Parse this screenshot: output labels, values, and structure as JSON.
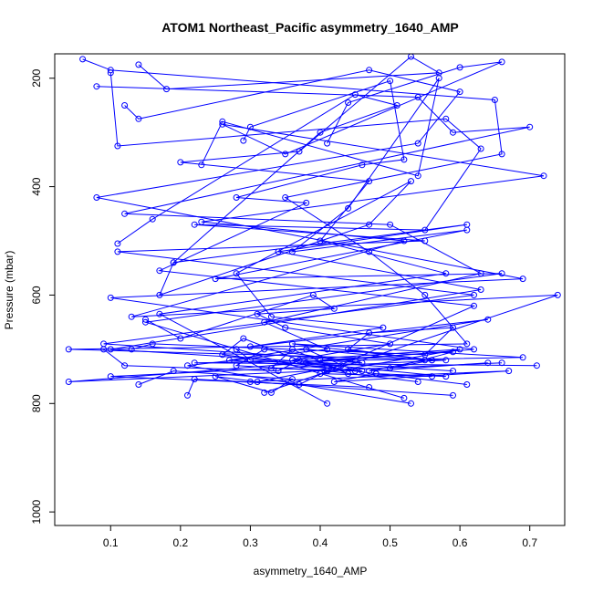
{
  "chart_data": {
    "type": "scatter",
    "title": "ATOM1 Northeast_Pacific asymmetry_1640_AMP",
    "xlabel": "asymmetry_1640_AMP",
    "ylabel": "Pressure (mbar)",
    "xlim": [
      0.02,
      0.75
    ],
    "ylim": [
      1025,
      155
    ],
    "y_reversed": true,
    "xticks": [
      0.1,
      0.2,
      0.3,
      0.4,
      0.5,
      0.6,
      0.7
    ],
    "xtick_labels": [
      "0.1",
      "0.2",
      "0.3",
      "0.4",
      "0.5",
      "0.6",
      "0.7"
    ],
    "yticks": [
      200,
      400,
      600,
      800,
      1000
    ],
    "ytick_labels": [
      "200",
      "400",
      "600",
      "800",
      "1000"
    ],
    "grid": false,
    "legend": "none",
    "colors": {
      "series": "#0000ff",
      "axes": "#000000"
    },
    "series": [
      {
        "x": [
          0.06,
          0.1,
          0.65,
          0.66,
          0.35,
          0.47,
          0.55,
          0.61,
          0.04,
          0.58,
          0.1,
          0.47
        ],
        "y": [
          165,
          185,
          240,
          340,
          420,
          520,
          600,
          690,
          700,
          720,
          750,
          770
        ]
      },
      {
        "x": [
          0.08,
          0.54,
          0.59,
          0.7,
          0.12,
          0.5,
          0.63,
          0.32,
          0.41,
          0.21,
          0.53
        ],
        "y": [
          215,
          235,
          300,
          290,
          450,
          470,
          560,
          650,
          700,
          730,
          800
        ]
      },
      {
        "x": [
          0.12,
          0.14,
          0.47,
          0.6,
          0.54,
          0.08,
          0.69,
          0.1,
          0.62,
          0.04,
          0.66
        ],
        "y": [
          250,
          275,
          185,
          225,
          320,
          420,
          570,
          605,
          700,
          760,
          725
        ]
      },
      {
        "x": [
          0.1,
          0.11,
          0.58,
          0.63,
          0.55,
          0.22,
          0.55,
          0.11,
          0.62,
          0.09,
          0.45
        ],
        "y": [
          190,
          325,
          275,
          330,
          480,
          470,
          500,
          520,
          600,
          690,
          720
        ]
      },
      {
        "x": [
          0.14,
          0.18,
          0.57,
          0.53,
          0.37,
          0.2,
          0.47,
          0.4,
          0.58,
          0.17,
          0.41
        ],
        "y": [
          175,
          220,
          190,
          160,
          335,
          355,
          390,
          500,
          560,
          635,
          800
        ]
      },
      {
        "x": [
          0.41,
          0.44,
          0.6,
          0.66,
          0.35,
          0.26,
          0.72,
          0.23,
          0.52,
          0.13,
          0.74,
          0.32
        ],
        "y": [
          320,
          245,
          180,
          170,
          340,
          285,
          380,
          465,
          500,
          640,
          600,
          780
        ]
      },
      {
        "x": [
          0.29,
          0.3,
          0.5,
          0.52,
          0.46,
          0.28,
          0.38,
          0.17,
          0.62,
          0.41,
          0.54
        ],
        "y": [
          315,
          290,
          205,
          350,
          360,
          420,
          430,
          555,
          620,
          740,
          760
        ]
      },
      {
        "x": [
          0.23,
          0.26,
          0.54,
          0.57,
          0.44,
          0.36,
          0.61,
          0.25,
          0.66,
          0.15,
          0.52
        ],
        "y": [
          360,
          280,
          380,
          200,
          440,
          520,
          480,
          570,
          560,
          650,
          790
        ]
      },
      {
        "x": [
          0.11,
          0.16,
          0.45,
          0.51,
          0.4,
          0.19,
          0.61,
          0.34,
          0.63,
          0.1,
          0.59
        ],
        "y": [
          505,
          460,
          230,
          250,
          300,
          540,
          470,
          520,
          590,
          700,
          740
        ]
      },
      {
        "x": [
          0.19,
          0.17,
          0.47,
          0.53,
          0.28,
          0.33,
          0.49,
          0.3,
          0.64,
          0.27,
          0.46
        ],
        "y": [
          540,
          600,
          470,
          390,
          560,
          640,
          660,
          695,
          645,
          720,
          740
        ]
      },
      {
        "x": [
          0.15,
          0.2,
          0.39,
          0.42,
          0.31,
          0.35,
          0.5,
          0.36,
          0.6,
          0.4,
          0.56
        ],
        "y": [
          645,
          680,
          600,
          625,
          635,
          660,
          690,
          720,
          700,
          745,
          750
        ]
      },
      {
        "x": [
          0.13,
          0.16,
          0.55,
          0.59,
          0.47,
          0.44,
          0.56,
          0.36,
          0.69,
          0.22,
          0.71
        ],
        "y": [
          700,
          690,
          710,
          660,
          670,
          700,
          720,
          690,
          715,
          725,
          730
        ]
      },
      {
        "x": [
          0.09,
          0.12,
          0.34,
          0.37,
          0.29,
          0.26,
          0.48,
          0.42,
          0.67,
          0.3,
          0.59
        ],
        "y": [
          700,
          730,
          740,
          720,
          680,
          710,
          745,
          760,
          740,
          760,
          785
        ]
      },
      {
        "x": [
          0.14,
          0.19,
          0.36,
          0.33,
          0.25,
          0.31,
          0.43,
          0.38,
          0.58,
          0.48,
          0.61
        ],
        "y": [
          765,
          740,
          755,
          780,
          750,
          760,
          730,
          725,
          750,
          745,
          765
        ]
      },
      {
        "x": [
          0.21,
          0.22,
          0.37,
          0.41,
          0.28,
          0.32,
          0.46,
          0.4,
          0.59,
          0.5,
          0.56
        ],
        "y": [
          785,
          755,
          765,
          740,
          730,
          700,
          725,
          720,
          705,
          735,
          720
        ]
      },
      {
        "x": [
          0.28,
          0.3,
          0.41,
          0.44,
          0.36,
          0.33,
          0.45,
          0.38,
          0.55,
          0.47,
          0.64
        ],
        "y": [
          700,
          720,
          730,
          745,
          700,
          735,
          740,
          700,
          720,
          740,
          725
        ]
      }
    ]
  }
}
